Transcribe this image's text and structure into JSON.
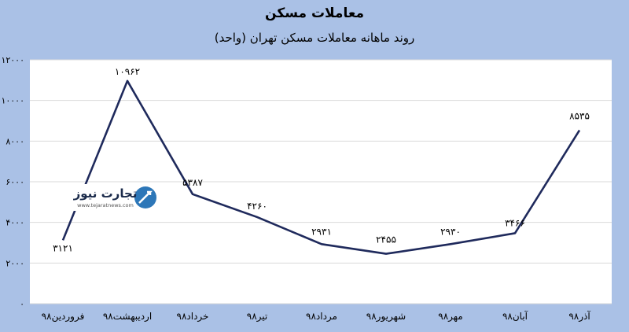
{
  "chart_data": {
    "type": "line",
    "title": "معاملات مسکن",
    "subtitle": "روند ماهانه معاملات مسکن تهران (واحد)",
    "categories": [
      "فروردین۹۸",
      "اردیبهشت۹۸",
      "خرداد۹۸",
      "تیر۹۸",
      "مرداد۹۸",
      "شهریور۹۸",
      "مهر۹۸",
      "آبان۹۸",
      "آذر۹۸"
    ],
    "values": [
      3121,
      10962,
      5387,
      4260,
      2931,
      2455,
      2930,
      3466,
      8535
    ],
    "data_labels": [
      "۳۱۲۱",
      "۱۰۹۶۲",
      "۵۳۸۷",
      "۴۲۶۰",
      "۲۹۳۱",
      "۲۴۵۵",
      "۲۹۳۰",
      "۳۴۶۶",
      "۸۵۳۵"
    ],
    "y_ticks": [
      0,
      2000,
      4000,
      6000,
      8000,
      10000,
      12000
    ],
    "y_tick_labels": [
      "۰",
      "۲۰۰۰",
      "۴۰۰۰",
      "۶۰۰۰",
      "۸۰۰۰",
      "۱۰۰۰۰",
      "۱۲۰۰۰"
    ],
    "ylim": [
      0,
      12000
    ],
    "grid": true,
    "line_color": "#1f2a5c",
    "grid_color": "#d9d9d9"
  },
  "watermark": {
    "brand": "تجارت نیوز",
    "url": "www.tejaratnews.com"
  },
  "colors": {
    "background": "#aac1e6",
    "plot_background": "#ffffff",
    "logo_blue": "#2d77b8",
    "logo_dark": "#1a2a4a"
  }
}
